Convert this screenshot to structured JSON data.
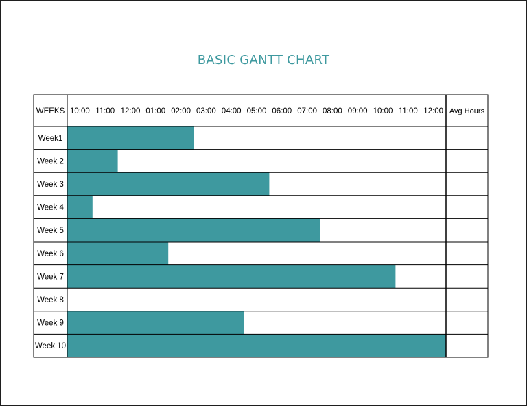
{
  "colors": {
    "bar": "#3e999f",
    "title": "#3e999f",
    "grid": "#000000"
  },
  "chart_data": {
    "type": "bar",
    "orientation": "horizontal",
    "title": "BASIC GANTT CHART",
    "row_header": "WEEKS",
    "extra_column_header": "Avg Hours",
    "time_ticks": [
      "10:00",
      "11:00",
      "12:00",
      "01:00",
      "02:00",
      "03:00",
      "04:00",
      "05:00",
      "06:00",
      "07:00",
      "08:00",
      "09:00",
      "10:00",
      "11:00",
      "12:00"
    ],
    "xlim": [
      0,
      15
    ],
    "categories": [
      "Week1",
      "Week 2",
      "Week 3",
      "Week 4",
      "Week 5",
      "Week 6",
      "Week 7",
      "Week 8",
      "Week 9",
      "Week 10"
    ],
    "values": [
      5,
      2,
      8,
      1,
      10,
      4,
      13,
      0,
      7,
      15
    ],
    "avg_hours": [
      "",
      "",
      "",
      "",
      "",
      "",
      "",
      "",
      "",
      ""
    ]
  }
}
